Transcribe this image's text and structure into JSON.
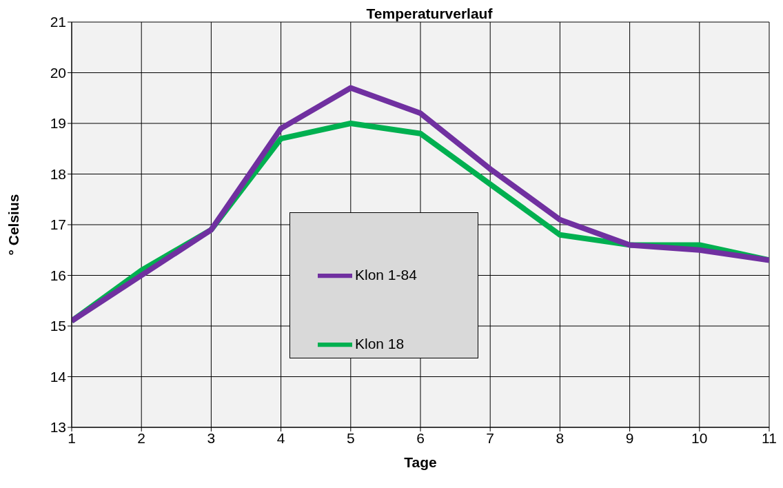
{
  "chart_data": {
    "type": "line",
    "title": "Temperaturverlauf",
    "xlabel": "Tage",
    "ylabel": "° Celsius",
    "x": [
      1,
      2,
      3,
      4,
      5,
      6,
      7,
      8,
      9,
      10,
      11
    ],
    "series": [
      {
        "name": "Klon 18",
        "color": "#00b050",
        "values": [
          15.1,
          16.1,
          16.9,
          18.7,
          19.0,
          18.8,
          17.8,
          16.8,
          16.6,
          16.6,
          16.3
        ]
      },
      {
        "name": "Klon 1-84",
        "color": "#7030a0",
        "values": [
          15.1,
          16.0,
          16.9,
          18.9,
          19.7,
          19.2,
          18.1,
          17.1,
          16.6,
          16.5,
          16.3
        ]
      }
    ],
    "xlim": [
      1,
      11
    ],
    "xticks": [
      1,
      2,
      3,
      4,
      5,
      6,
      7,
      8,
      9,
      10,
      11
    ],
    "ylim": [
      13,
      21
    ],
    "yticks": [
      13,
      14,
      15,
      16,
      17,
      18,
      19,
      20,
      21
    ],
    "grid": true,
    "legend": "center",
    "marker": "none",
    "line_style": "solid"
  }
}
